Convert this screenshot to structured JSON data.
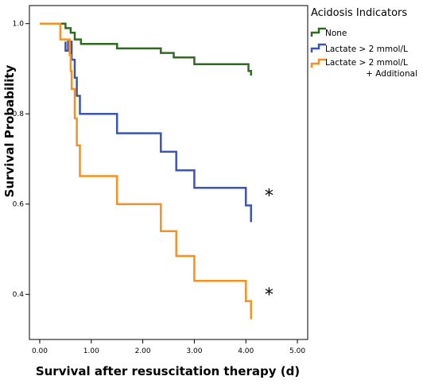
{
  "chart_data": {
    "type": "line",
    "step": true,
    "xlabel": "Survival after resuscitation therapy (d)",
    "ylabel": "Survival Probability",
    "xlim": [
      -0.2,
      5.2
    ],
    "ylim": [
      0.3,
      1.04
    ],
    "x_ticks": [
      "0.00",
      "1.00",
      "2.00",
      "3.00",
      "4.00",
      "5.00"
    ],
    "x_tick_values": [
      0,
      1,
      2,
      3,
      4,
      5
    ],
    "y_ticks": [
      "0.4",
      "0.6",
      "0.8",
      "1.0"
    ],
    "y_tick_values": [
      0.4,
      0.6,
      0.8,
      1.0
    ],
    "grid": false,
    "legend": {
      "title": "Acidosis Indicators",
      "placement": "top-right outside",
      "entries": [
        {
          "label": "None",
          "color": "#2e6b1f"
        },
        {
          "label": "Lactate > 2 mmol/L",
          "color": "#3a55b5"
        },
        {
          "label": "Lactate > 2 mmol/L",
          "label2": "+ Additional",
          "color": "#f7901e"
        }
      ]
    },
    "annotations": [
      {
        "text": "*",
        "x": 4.45,
        "y": 0.62
      },
      {
        "text": "*",
        "x": 4.45,
        "y": 0.4
      }
    ],
    "series": [
      {
        "color": "#2e6b1f",
        "points": [
          [
            0,
            1.0
          ],
          [
            0.5,
            1.0
          ],
          [
            0.5,
            0.99
          ],
          [
            0.6,
            0.99
          ],
          [
            0.6,
            0.98
          ],
          [
            0.68,
            0.98
          ],
          [
            0.68,
            0.965
          ],
          [
            0.8,
            0.965
          ],
          [
            0.8,
            0.955
          ],
          [
            1.5,
            0.955
          ],
          [
            1.5,
            0.945
          ],
          [
            2.35,
            0.945
          ],
          [
            2.35,
            0.935
          ],
          [
            2.6,
            0.935
          ],
          [
            2.6,
            0.925
          ],
          [
            3.0,
            0.925
          ],
          [
            3.0,
            0.91
          ],
          [
            4.05,
            0.91
          ],
          [
            4.05,
            0.895
          ],
          [
            4.1,
            0.895
          ],
          [
            4.1,
            0.885
          ]
        ]
      },
      {
        "color": "#3a55b5",
        "points": [
          [
            0.5,
            0.96
          ],
          [
            0.5,
            0.94
          ],
          [
            0.55,
            0.94
          ],
          [
            0.55,
            0.96
          ],
          [
            0.62,
            0.96
          ],
          [
            0.62,
            0.92
          ],
          [
            0.68,
            0.92
          ],
          [
            0.68,
            0.88
          ],
          [
            0.72,
            0.88
          ],
          [
            0.72,
            0.84
          ],
          [
            0.78,
            0.84
          ],
          [
            0.78,
            0.8
          ],
          [
            1.5,
            0.8
          ],
          [
            1.5,
            0.757
          ],
          [
            2.35,
            0.757
          ],
          [
            2.35,
            0.716
          ],
          [
            2.65,
            0.716
          ],
          [
            2.65,
            0.675
          ],
          [
            3.0,
            0.675
          ],
          [
            3.0,
            0.636
          ],
          [
            4.0,
            0.636
          ],
          [
            4.0,
            0.597
          ],
          [
            4.1,
            0.597
          ],
          [
            4.1,
            0.56
          ]
        ]
      },
      {
        "color": "#f7901e",
        "points": [
          [
            0,
            1.0
          ],
          [
            0.4,
            1.0
          ],
          [
            0.4,
            0.965
          ],
          [
            0.58,
            0.965
          ],
          [
            0.58,
            0.93
          ],
          [
            0.6,
            0.93
          ],
          [
            0.6,
            0.895
          ],
          [
            0.62,
            0.895
          ],
          [
            0.62,
            0.855
          ],
          [
            0.68,
            0.855
          ],
          [
            0.68,
            0.79
          ],
          [
            0.72,
            0.79
          ],
          [
            0.72,
            0.73
          ],
          [
            0.78,
            0.73
          ],
          [
            0.78,
            0.662
          ],
          [
            1.5,
            0.662
          ],
          [
            1.5,
            0.6
          ],
          [
            2.35,
            0.6
          ],
          [
            2.35,
            0.54
          ],
          [
            2.65,
            0.54
          ],
          [
            2.65,
            0.485
          ],
          [
            3.0,
            0.485
          ],
          [
            3.0,
            0.43
          ],
          [
            4.0,
            0.43
          ],
          [
            4.0,
            0.385
          ],
          [
            4.1,
            0.385
          ],
          [
            4.1,
            0.345
          ]
        ]
      }
    ]
  }
}
